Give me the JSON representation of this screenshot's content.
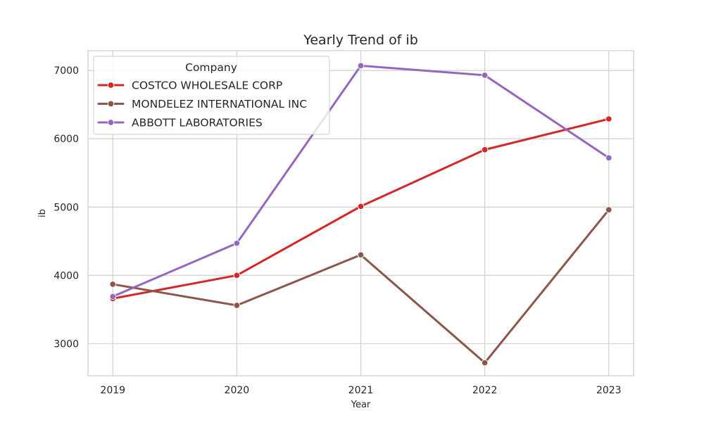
{
  "chart_data": {
    "type": "line",
    "title": "Yearly Trend of ib",
    "xlabel": "Year",
    "ylabel": "ib",
    "x": [
      2019,
      2020,
      2021,
      2022,
      2023
    ],
    "x_tick_labels": [
      "2019",
      "2020",
      "2021",
      "2022",
      "2023"
    ],
    "y_ticks": [
      3000,
      4000,
      5000,
      6000,
      7000
    ],
    "y_tick_labels": [
      "3000",
      "4000",
      "5000",
      "6000",
      "7000"
    ],
    "xlim": [
      2018.8,
      2023.2
    ],
    "ylim": [
      2530,
      7290
    ],
    "grid": true,
    "legend": {
      "title": "Company",
      "placement": "top-left"
    },
    "series": [
      {
        "name": "COSTCO WHOLESALE CORP",
        "color": "#d62728",
        "values": [
          3660,
          4000,
          5010,
          5840,
          6290
        ]
      },
      {
        "name": "MONDELEZ INTERNATIONAL INC",
        "color": "#8c564b",
        "values": [
          3870,
          3560,
          4300,
          2720,
          4960
        ]
      },
      {
        "name": "ABBOTT LABORATORIES",
        "color": "#9467bd",
        "values": [
          3690,
          4470,
          7070,
          6930,
          5720
        ]
      }
    ]
  }
}
